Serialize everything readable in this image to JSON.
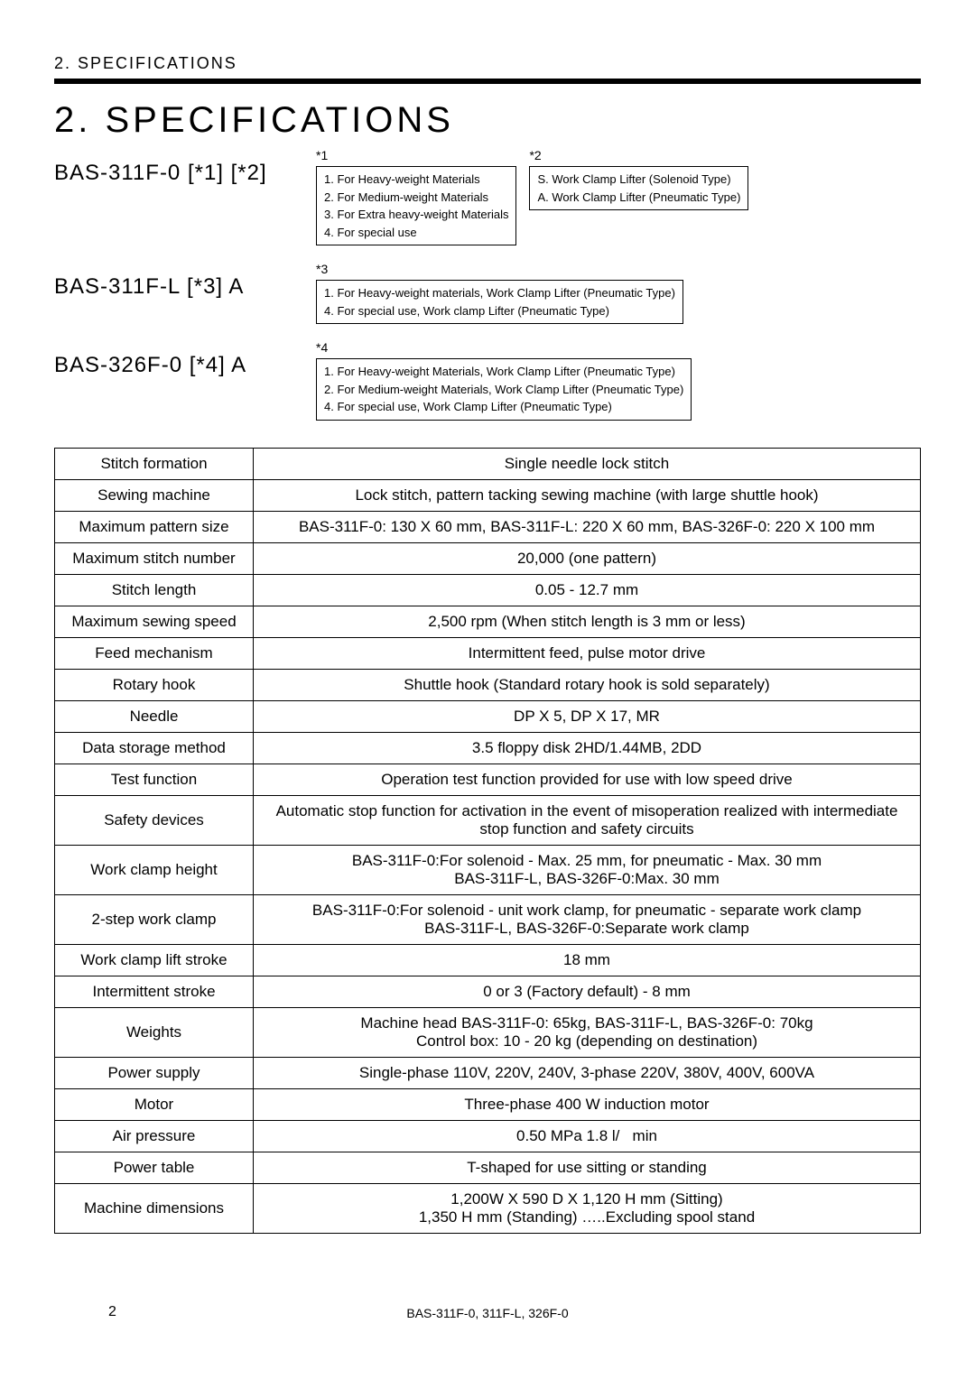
{
  "header_small": "2. SPECIFICATIONS",
  "title": "2. SPECIFICATIONS",
  "models": {
    "m1": {
      "label": "BAS-311F-0 [*1] [*2]",
      "note1_label": "*1",
      "note1_lines": [
        "1. For Heavy-weight Materials",
        "2. For Medium-weight Materials",
        "3. For Extra heavy-weight Materials",
        "4. For special use"
      ],
      "note2_label": "*2",
      "note2_lines": [
        "S. Work Clamp Lifter (Solenoid Type)",
        "A. Work Clamp Lifter (Pneumatic Type)"
      ]
    },
    "m2": {
      "label": "BAS-311F-L [*3] A",
      "note_label": "*3",
      "note_lines": [
        "1. For Heavy-weight materials, Work Clamp Lifter (Pneumatic Type)",
        "4. For special use, Work clamp Lifter (Pneumatic Type)"
      ]
    },
    "m3": {
      "label": "BAS-326F-0 [*4] A",
      "note_label": "*4",
      "note_lines": [
        "1. For Heavy-weight Materials, Work Clamp Lifter (Pneumatic Type)",
        "2. For Medium-weight Materials, Work Clamp Lifter (Pneumatic Type)",
        "4. For special use, Work Clamp Lifter (Pneumatic Type)"
      ]
    }
  },
  "spec_rows": [
    {
      "k": "Stitch formation",
      "v": "Single needle lock stitch"
    },
    {
      "k": "Sewing machine",
      "v": "Lock stitch, pattern tacking sewing machine (with large shuttle hook)"
    },
    {
      "k": "Maximum pattern size",
      "v": "BAS-311F-0: 130 X 60 mm, BAS-311F-L: 220 X 60 mm, BAS-326F-0: 220 X 100 mm"
    },
    {
      "k": "Maximum stitch number",
      "v": "20,000 (one pattern)"
    },
    {
      "k": "Stitch length",
      "v": "0.05 - 12.7 mm"
    },
    {
      "k": "Maximum sewing speed",
      "v": "2,500 rpm (When stitch length is 3 mm or less)"
    },
    {
      "k": "Feed mechanism",
      "v": "Intermittent feed, pulse motor drive"
    },
    {
      "k": "Rotary hook",
      "v": "Shuttle hook (Standard rotary hook is sold separately)"
    },
    {
      "k": "Needle",
      "v": "DP X 5, DP X 17, MR"
    },
    {
      "k": "Data storage method",
      "v": "3.5 floppy disk 2HD/1.44MB, 2DD"
    },
    {
      "k": "Test function",
      "v": "Operation test function provided for use with low speed drive"
    },
    {
      "k": "Safety devices",
      "v": "Automatic stop function for activation in the event of misoperation realized with intermediate stop function and safety circuits"
    },
    {
      "k": "Work clamp height",
      "v": "BAS-311F-0:For solenoid - Max. 25 mm, for pneumatic - Max. 30 mm\nBAS-311F-L, BAS-326F-0:Max. 30 mm"
    },
    {
      "k": "2-step work clamp",
      "v": "BAS-311F-0:For solenoid - unit work clamp, for pneumatic - separate work clamp\nBAS-311F-L, BAS-326F-0:Separate work clamp"
    },
    {
      "k": "Work clamp lift stroke",
      "v": "18 mm"
    },
    {
      "k": "Intermittent stroke",
      "v": "0 or 3 (Factory default) - 8 mm"
    },
    {
      "k": "Weights",
      "v": "Machine head BAS-311F-0: 65kg, BAS-311F-L, BAS-326F-0: 70kg\nControl box: 10 - 20 kg (depending on destination)"
    },
    {
      "k": "Power supply",
      "v": "Single-phase 110V, 220V, 240V, 3-phase 220V, 380V, 400V, 600VA"
    },
    {
      "k": "Motor",
      "v": "Three-phase 400 W induction motor"
    },
    {
      "k": "Air pressure",
      "v": "0.50 MPa 1.8 l/   min"
    },
    {
      "k": "Power table",
      "v": "T-shaped for use sitting or standing"
    },
    {
      "k": "Machine dimensions",
      "v": "1,200W X 590 D X 1,120 H mm (Sitting)\n1,350 H mm (Standing) …..Excluding spool stand"
    }
  ],
  "footer": "BAS-311F-0, 311F-L, 326F-0",
  "page_number": "2"
}
